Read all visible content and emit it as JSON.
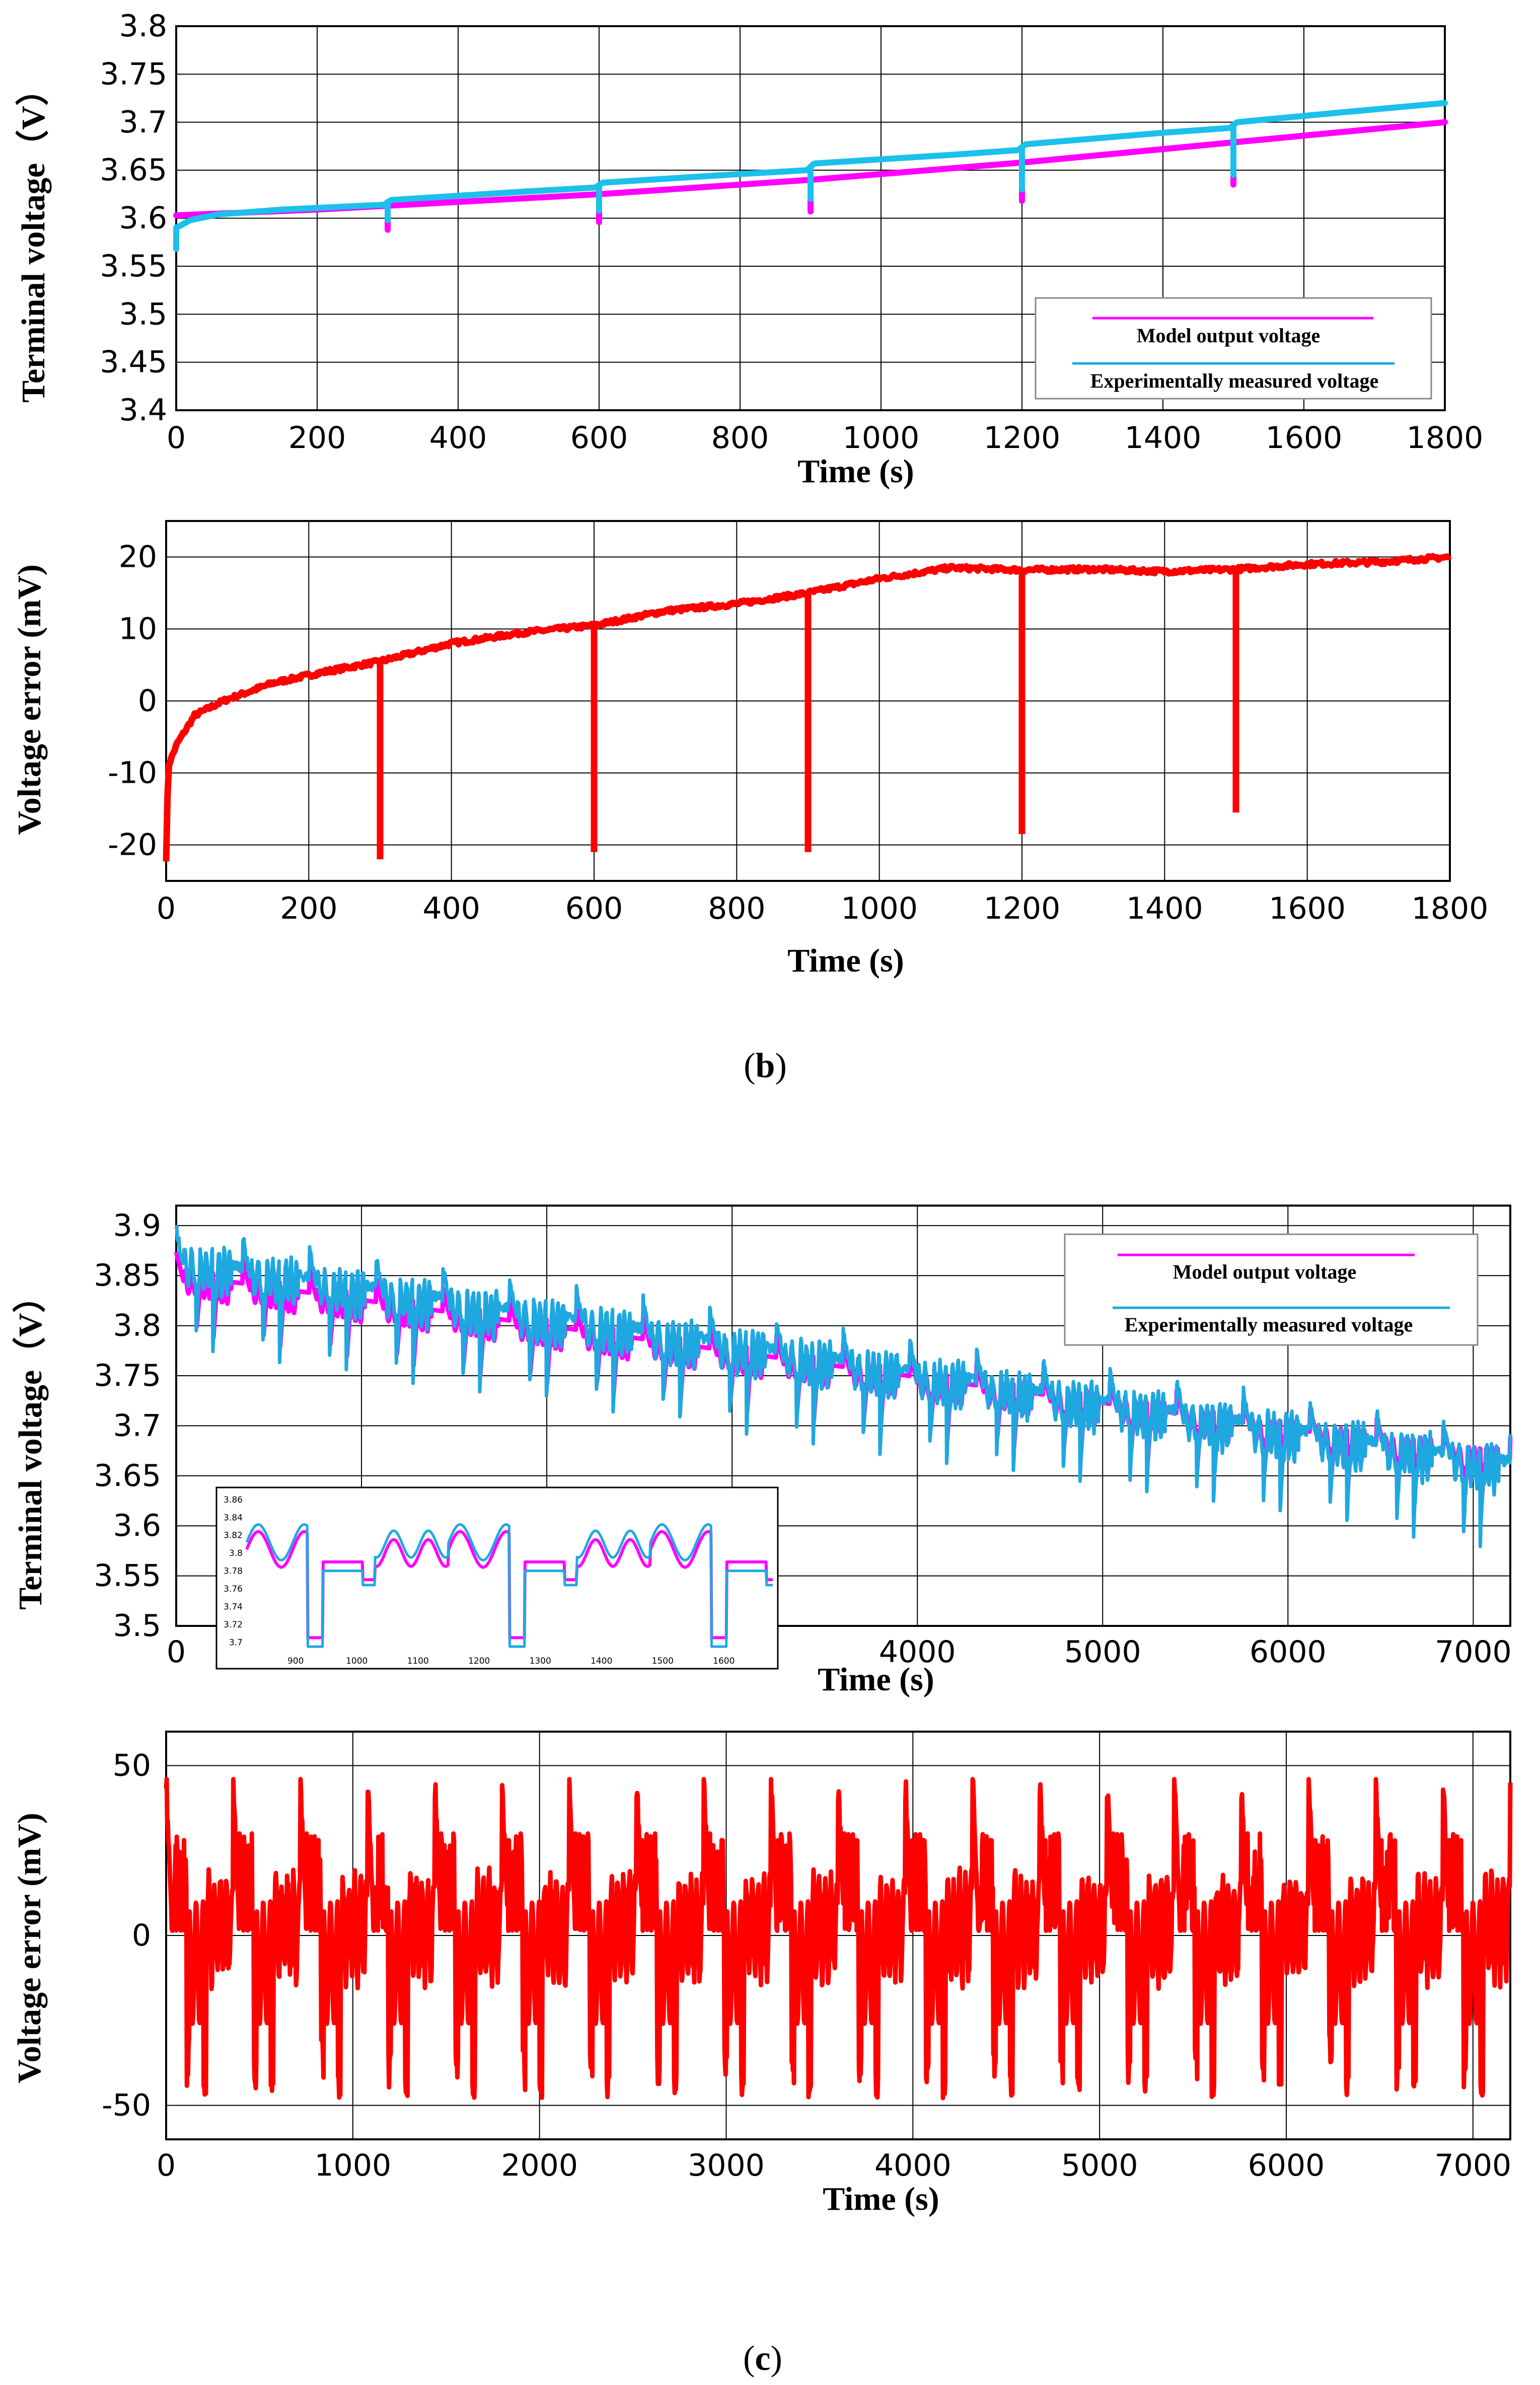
{
  "colors": {
    "model": "#ff00ff",
    "measured": "#1fa8e0",
    "measured_b": "#1cc0ea",
    "error": "#ff0000",
    "grid": "#000000"
  },
  "caption_b": {
    "open": "(",
    "letter": "b",
    "close": ")"
  },
  "caption_c": {
    "open": "(",
    "letter": "c",
    "close": ")"
  },
  "chart_data": [
    {
      "id": "b_voltage",
      "type": "line",
      "title": "",
      "xlabel": "Time (s)",
      "ylabel": "Terminal voltage（V）",
      "xlim": [
        0,
        1800
      ],
      "ylim": [
        3.4,
        3.8
      ],
      "x_ticks": [
        0,
        200,
        400,
        600,
        800,
        1000,
        1200,
        1400,
        1600,
        1800
      ],
      "y_ticks": [
        3.4,
        3.45,
        3.5,
        3.55,
        3.6,
        3.65,
        3.7,
        3.75,
        3.8
      ],
      "x_tick_labels": [
        "0",
        "200",
        "400",
        "600",
        "800",
        "1000",
        "1200",
        "1400",
        "1600",
        "1800"
      ],
      "y_tick_labels": [
        "3.4",
        "3.45",
        "3.5",
        "3.55",
        "3.6",
        "3.65",
        "3.7",
        "3.75",
        "3.8"
      ],
      "grid": true,
      "legend": "bottom-right",
      "series": [
        {
          "name": "Model output voltage",
          "color": "#ff00ff",
          "points": [
            [
              0,
              3.603
            ],
            [
              100,
              3.606
            ],
            [
              200,
              3.609
            ],
            [
              300,
              3.613
            ],
            [
              400,
              3.617
            ],
            [
              500,
              3.621
            ],
            [
              600,
              3.625
            ],
            [
              700,
              3.63
            ],
            [
              800,
              3.635
            ],
            [
              900,
              3.64
            ],
            [
              1000,
              3.646
            ],
            [
              1100,
              3.652
            ],
            [
              1200,
              3.658
            ],
            [
              1300,
              3.665
            ],
            [
              1400,
              3.672
            ],
            [
              1500,
              3.679
            ],
            [
              1600,
              3.686
            ],
            [
              1700,
              3.693
            ],
            [
              1800,
              3.7
            ]
          ],
          "dips": [
            [
              300,
              3.588
            ],
            [
              600,
              3.596
            ],
            [
              900,
              3.607
            ],
            [
              1200,
              3.618
            ],
            [
              1500,
              3.635
            ]
          ]
        },
        {
          "name": "Experimentally measured voltage",
          "color": "#1cc0ea",
          "points": [
            [
              0,
              3.59
            ],
            [
              20,
              3.598
            ],
            [
              60,
              3.604
            ],
            [
              150,
              3.609
            ],
            [
              295,
              3.614
            ],
            [
              305,
              3.619
            ],
            [
              500,
              3.628
            ],
            [
              595,
              3.632
            ],
            [
              605,
              3.637
            ],
            [
              800,
              3.646
            ],
            [
              895,
              3.65
            ],
            [
              905,
              3.657
            ],
            [
              1100,
              3.666
            ],
            [
              1195,
              3.671
            ],
            [
              1205,
              3.677
            ],
            [
              1400,
              3.689
            ],
            [
              1495,
              3.694
            ],
            [
              1505,
              3.7
            ],
            [
              1650,
              3.71
            ],
            [
              1800,
              3.72
            ]
          ],
          "dips": [
            [
              0,
              3.568
            ],
            [
              300,
              3.598
            ],
            [
              600,
              3.608
            ],
            [
              900,
              3.62
            ],
            [
              1200,
              3.63
            ],
            [
              1500,
              3.645
            ]
          ]
        }
      ]
    },
    {
      "id": "b_error",
      "type": "line",
      "title": "",
      "xlabel": "Time (s)",
      "ylabel": "Voltage error (mV)",
      "xlim": [
        0,
        1800
      ],
      "ylim": [
        -25,
        25
      ],
      "x_ticks": [
        0,
        200,
        400,
        600,
        800,
        1000,
        1200,
        1400,
        1600,
        1800
      ],
      "y_ticks": [
        -20,
        -10,
        0,
        10,
        20
      ],
      "x_tick_labels": [
        "0",
        "200",
        "400",
        "600",
        "800",
        "1000",
        "1200",
        "1400",
        "1600",
        "1800"
      ],
      "y_tick_labels": [
        "-20",
        "-10",
        "0",
        "10",
        "20"
      ],
      "grid": true,
      "series": [
        {
          "name": "Voltage error",
          "color": "#ff0000",
          "points": [
            [
              0,
              -22
            ],
            [
              3,
              -9
            ],
            [
              15,
              -6
            ],
            [
              40,
              -2
            ],
            [
              80,
              0
            ],
            [
              150,
              2.5
            ],
            [
              220,
              4
            ],
            [
              300,
              5.5
            ],
            [
              400,
              8
            ],
            [
              500,
              9.5
            ],
            [
              600,
              10.5
            ],
            [
              700,
              12.5
            ],
            [
              800,
              13.5
            ],
            [
              900,
              15
            ],
            [
              1000,
              17
            ],
            [
              1100,
              18.5
            ],
            [
              1200,
              18.2
            ],
            [
              1300,
              18.3
            ],
            [
              1400,
              18
            ],
            [
              1500,
              18.3
            ],
            [
              1600,
              19
            ],
            [
              1700,
              19.3
            ],
            [
              1800,
              20
            ]
          ],
          "dips": [
            [
              300,
              -22
            ],
            [
              600,
              -21
            ],
            [
              900,
              -21
            ],
            [
              1200,
              -18.5
            ],
            [
              1500,
              -15.5
            ]
          ]
        }
      ]
    },
    {
      "id": "c_voltage",
      "type": "line",
      "title": "",
      "xlabel": "Time (s)",
      "ylabel": "Terminal voltage（V）",
      "xlim": [
        0,
        7200
      ],
      "ylim": [
        3.5,
        3.92
      ],
      "x_ticks": [
        0,
        4000,
        5000,
        6000,
        7000
      ],
      "y_ticks": [
        3.5,
        3.55,
        3.6,
        3.65,
        3.7,
        3.75,
        3.8,
        3.85,
        3.9
      ],
      "x_tick_labels": [
        "0",
        "4000",
        "5000",
        "6000",
        "7000"
      ],
      "y_tick_labels": [
        "3.5",
        "3.55",
        "3.6",
        "3.65",
        "3.7",
        "3.75",
        "3.8",
        "3.85",
        "3.9"
      ],
      "grid": true,
      "legend": "top-right",
      "series": [
        {
          "name": "Model output voltage",
          "color": "#ff00ff",
          "trend": [
            [
              0,
              3.845
            ],
            [
              7200,
              3.66
            ]
          ]
        },
        {
          "name": "Experimentally measured voltage",
          "color": "#1fa8e0",
          "trend": [
            [
              0,
              3.86
            ],
            [
              7200,
              3.655
            ]
          ]
        }
      ],
      "inset": {
        "xlim": [
          820,
          1680
        ],
        "ylim": [
          3.69,
          3.865
        ],
        "x_ticks": [
          900,
          1000,
          1100,
          1200,
          1300,
          1400,
          1500,
          1600
        ],
        "x_tick_labels": [
          "900",
          "1000",
          "1100",
          "1200",
          "1300",
          "1400",
          "1500",
          "1600"
        ],
        "y_ticks": [
          3.7,
          3.72,
          3.74,
          3.76,
          3.78,
          3.8,
          3.82,
          3.84,
          3.86
        ],
        "y_tick_labels": [
          "3.7",
          "3.72",
          "3.74",
          "3.76",
          "3.78",
          "3.8",
          "3.82",
          "3.84",
          "3.86"
        ]
      }
    },
    {
      "id": "c_error",
      "type": "line",
      "title": "",
      "xlabel": "Time (s)",
      "ylabel": "Voltage error (mV)",
      "xlim": [
        0,
        7200
      ],
      "ylim": [
        -60,
        60
      ],
      "x_ticks": [
        0,
        1000,
        2000,
        3000,
        4000,
        5000,
        6000,
        7000
      ],
      "y_ticks": [
        -50,
        0,
        50
      ],
      "x_tick_labels": [
        "0",
        "1000",
        "2000",
        "3000",
        "4000",
        "5000",
        "6000",
        "7000"
      ],
      "y_tick_labels": [
        "-50",
        "0",
        "50"
      ],
      "grid": true,
      "series": [
        {
          "name": "Voltage error",
          "color": "#ff0000",
          "range": [
            -48,
            46
          ]
        }
      ]
    }
  ]
}
